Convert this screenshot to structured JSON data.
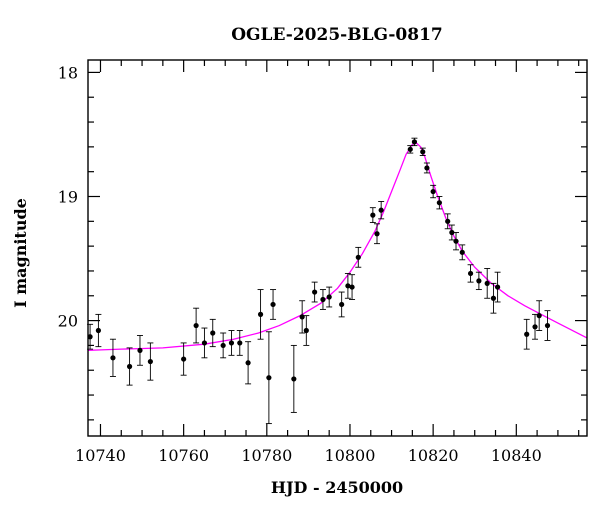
{
  "chart_data": {
    "type": "scatter",
    "title": "OGLE-2025-BLG-0817",
    "xlabel": "HJD - 2450000",
    "ylabel": "I magnitude",
    "xlim": [
      10737,
      10857
    ],
    "ylim": [
      20.93,
      17.9
    ],
    "y_inverted": true,
    "x_ticks": [
      10740,
      10760,
      10780,
      10800,
      10820,
      10840
    ],
    "y_ticks": [
      18,
      19,
      20
    ],
    "x_minor_step": 5,
    "y_minor_step": 0.2,
    "colors": {
      "points": "#000000",
      "model": "#ff00ff",
      "axes": "#000000"
    },
    "series": [
      {
        "kind": "points",
        "x": [
          10737.5,
          10739.5,
          10743,
          10747,
          10749.5,
          10752,
          10760,
          10763,
          10765,
          10767,
          10769.5,
          10771.5,
          10773.5,
          10775.5,
          10778.5,
          10780.5,
          10781.5,
          10786.5,
          10788.5,
          10789.5,
          10791.5,
          10793.5,
          10795,
          10798,
          10799.5,
          10800.5,
          10802,
          10805.5,
          10806.5,
          10807.5,
          10814.5,
          10815.5,
          10817.5,
          10818.5,
          10820,
          10821.5,
          10823.5,
          10824.5,
          10825.5,
          10827,
          10829,
          10831,
          10833,
          10834.5,
          10835.5,
          10842.5,
          10844.5,
          10845.5,
          10847.5
        ],
        "y": [
          20.13,
          20.08,
          20.3,
          20.37,
          20.24,
          20.33,
          20.31,
          20.04,
          20.18,
          20.1,
          20.2,
          20.18,
          20.18,
          20.34,
          19.95,
          20.46,
          19.87,
          20.47,
          19.97,
          20.08,
          19.77,
          19.83,
          19.81,
          19.87,
          19.72,
          19.73,
          19.49,
          19.15,
          19.3,
          19.11,
          18.62,
          18.56,
          18.64,
          18.77,
          18.96,
          19.05,
          19.2,
          19.29,
          19.36,
          19.45,
          19.62,
          19.68,
          19.7,
          19.82,
          19.73,
          20.11,
          20.05,
          19.96,
          20.04
        ],
        "err": [
          0.1,
          0.13,
          0.15,
          0.15,
          0.12,
          0.15,
          0.13,
          0.14,
          0.12,
          0.11,
          0.1,
          0.1,
          0.1,
          0.17,
          0.2,
          0.37,
          0.12,
          0.27,
          0.13,
          0.12,
          0.08,
          0.08,
          0.08,
          0.1,
          0.1,
          0.1,
          0.08,
          0.06,
          0.08,
          0.07,
          0.03,
          0.03,
          0.03,
          0.04,
          0.05,
          0.05,
          0.06,
          0.06,
          0.07,
          0.06,
          0.07,
          0.07,
          0.12,
          0.12,
          0.12,
          0.12,
          0.1,
          0.12,
          0.12
        ]
      },
      {
        "kind": "model",
        "x": [
          10737,
          10745,
          10755,
          10765,
          10772,
          10778,
          10783,
          10788,
          10793,
          10797,
          10800,
          10803,
          10806,
          10808,
          10810,
          10812,
          10813.5,
          10815,
          10816,
          10817,
          10818,
          10819.5,
          10821,
          10823,
          10825,
          10827,
          10830,
          10834,
          10838,
          10842,
          10846,
          10850,
          10857
        ],
        "y": [
          20.24,
          20.23,
          20.22,
          20.19,
          20.15,
          20.1,
          20.04,
          19.96,
          19.86,
          19.74,
          19.61,
          19.46,
          19.28,
          19.13,
          18.96,
          18.79,
          18.66,
          18.58,
          18.57,
          18.6,
          18.68,
          18.84,
          18.99,
          19.17,
          19.32,
          19.44,
          19.57,
          19.7,
          19.8,
          19.88,
          19.95,
          20.02,
          20.14
        ]
      }
    ]
  }
}
